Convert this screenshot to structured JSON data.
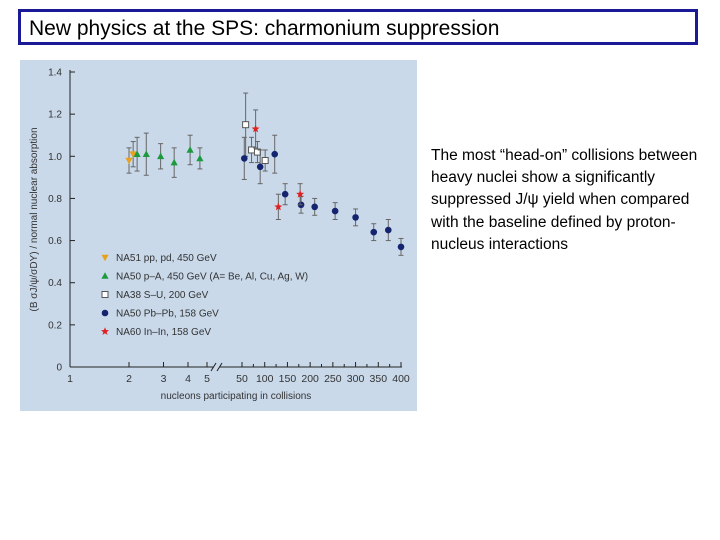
{
  "slide": {
    "title": "New physics at the SPS: charmonium suppression",
    "caption": "The most “head-on” collisions between heavy nuclei show a significantly suppressed J/ψ yield when compared with the baseline defined by proton-nucleus interactions"
  },
  "chart_data": {
    "type": "scatter",
    "title": "",
    "xlabel": "nucleons participating in collisions",
    "ylabel": "(B σJ/ψ/σDY) / normal nuclear absorption",
    "ylim": [
      0,
      1.4
    ],
    "yticks": [
      "0",
      "0.2",
      "0.4",
      "0.6",
      "0.8",
      "1.0",
      "1.2",
      "1.4"
    ],
    "xscale": "broken: log 1-5, linear 50-400",
    "xticks": [
      "1",
      "2",
      "3",
      "4",
      "5",
      "50",
      "100",
      "150",
      "200",
      "250",
      "300",
      "350",
      "400"
    ],
    "grid": false,
    "legend_position": "bottom-left",
    "colors": {
      "NA51": "#e8a020",
      "NA50pA": "#1e9a3e",
      "NA38": "#ffffff",
      "NA50PbPb": "#14246e",
      "NA60": "#e02020"
    },
    "series": [
      {
        "key": "NA51",
        "name": "NA51 pp, pd, 450 GeV",
        "marker": "triangle-down",
        "x": [
          2.0,
          2.1
        ],
        "y": [
          0.98,
          1.01
        ],
        "err": [
          0.06,
          0.06
        ]
      },
      {
        "key": "NA50pA",
        "name": "NA50 p–A, 450 GeV (A= Be, Al, Cu, Ag, W)",
        "marker": "triangle-up",
        "x": [
          2.2,
          2.45,
          2.9,
          3.4,
          4.1,
          4.6
        ],
        "y": [
          1.01,
          1.01,
          1.0,
          0.97,
          1.03,
          0.99
        ],
        "err": [
          0.08,
          0.1,
          0.06,
          0.07,
          0.07,
          0.05
        ]
      },
      {
        "key": "NA38",
        "name": "NA38 S–U, 200 GeV",
        "marker": "square-open",
        "x": [
          58,
          71,
          84,
          101
        ],
        "y": [
          1.15,
          1.03,
          1.02,
          0.98
        ],
        "err": [
          0.15,
          0.06,
          0.05,
          0.05
        ]
      },
      {
        "key": "NA50PbPb",
        "name": "NA50 Pb–Pb, 158 GeV",
        "marker": "circle",
        "x": [
          55,
          90,
          122,
          145,
          180,
          210,
          255,
          300,
          340,
          372,
          400
        ],
        "y": [
          0.99,
          0.95,
          1.01,
          0.82,
          0.77,
          0.76,
          0.74,
          0.71,
          0.64,
          0.65,
          0.57
        ],
        "err": [
          0.1,
          0.08,
          0.09,
          0.05,
          0.04,
          0.04,
          0.04,
          0.04,
          0.04,
          0.05,
          0.04
        ]
      },
      {
        "key": "NA60",
        "name": "NA60 In–In, 158 GeV",
        "marker": "star",
        "x": [
          80,
          130,
          178
        ],
        "y": [
          1.13,
          0.76,
          0.82
        ],
        "err": [
          0.09,
          0.06,
          0.05
        ]
      }
    ]
  }
}
